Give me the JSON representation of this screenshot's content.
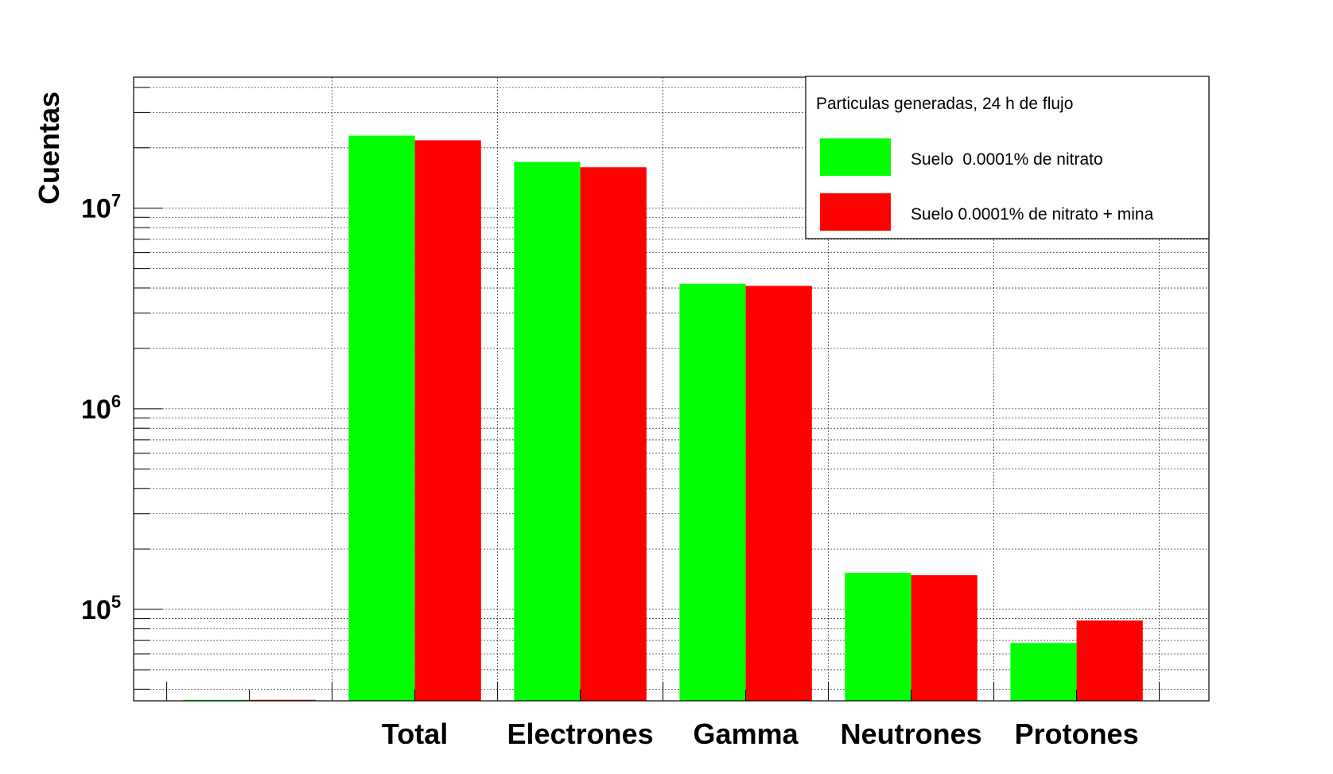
{
  "chart_data": {
    "type": "bar",
    "ylabel": "Cuentas",
    "yscale": "log",
    "ylim": [
      35000,
      45000000
    ],
    "ytick_labels": [
      {
        "base": "10",
        "exp": "5",
        "value": 100000
      },
      {
        "base": "10",
        "exp": "6",
        "value": 1000000
      },
      {
        "base": "10",
        "exp": "7",
        "value": 10000000
      }
    ],
    "grid": true,
    "categories": [
      "",
      "Total",
      "Electrones",
      "Gamma",
      "Neutrones",
      "Protones"
    ],
    "series": [
      {
        "name": "Suelo  0.0001% de nitrato",
        "color": "#00ff00",
        "values": [
          0,
          23000000,
          17000000,
          4200000,
          152000,
          68000
        ]
      },
      {
        "name": "Suelo 0.0001% de nitrato + mina",
        "color": "#ff0000",
        "values": [
          0,
          21800000,
          16000000,
          4100000,
          148000,
          88000
        ]
      }
    ],
    "legend": {
      "title": "Particulas generadas, 24 h de flujo",
      "position": "top-right"
    }
  }
}
